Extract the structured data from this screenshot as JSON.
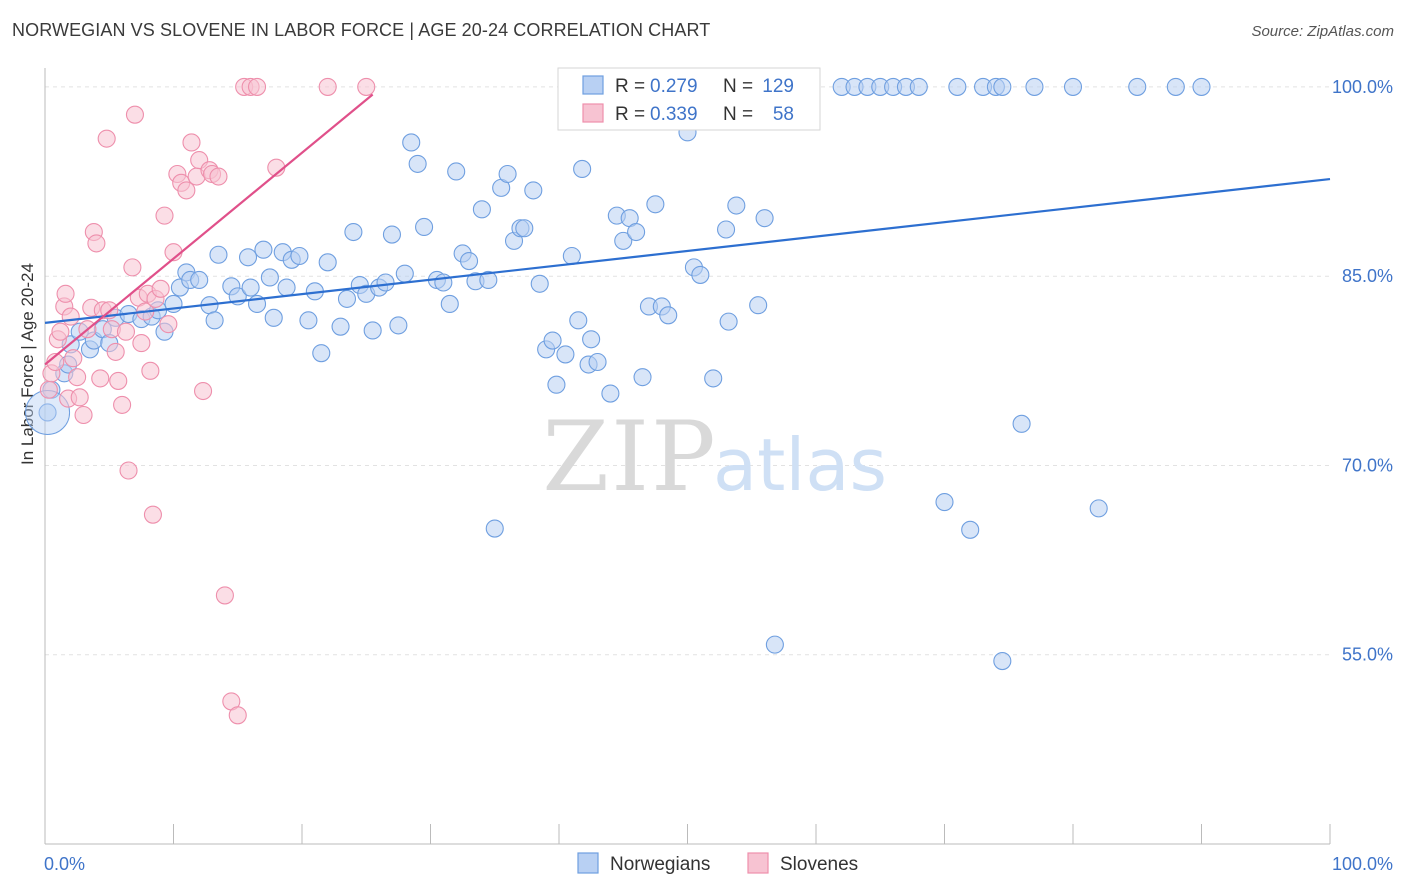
{
  "title": "NORWEGIAN VS SLOVENE IN LABOR FORCE | AGE 20-24 CORRELATION CHART",
  "source": "Source: ZipAtlas.com",
  "watermark": {
    "zip": "ZIP",
    "atlas": "atlas"
  },
  "chart_data": {
    "type": "scatter",
    "xlabel": "",
    "ylabel": "In Labor Force | Age 20-24",
    "xlim": [
      0,
      100
    ],
    "ylim": [
      40,
      101.5
    ],
    "x_tick_labels": [
      "0.0%",
      "100.0%"
    ],
    "y_ticks": [
      55,
      70,
      85,
      100
    ],
    "y_tick_labels": [
      "55.0%",
      "70.0%",
      "85.0%",
      "100.0%"
    ],
    "legend": [
      {
        "name": "Norwegians",
        "R_label": "R =",
        "R": "0.279",
        "N_label": "N =",
        "N": "129",
        "color": "#6f9fe0"
      },
      {
        "name": "Slovenes",
        "R_label": "R =",
        "R": "0.339",
        "N_label": "N =",
        "N": "58",
        "color": "#ee8fac"
      }
    ],
    "series": [
      {
        "name": "Norwegians",
        "color": "#6f9fe0",
        "fill": "#b8d0f3",
        "trend": {
          "x": [
            0,
            100
          ],
          "y": [
            81.3,
            92.7
          ],
          "color": "#2d6fd0"
        },
        "points": [
          [
            0.5,
            76
          ],
          [
            0.2,
            74.2
          ],
          [
            1.5,
            77.3
          ],
          [
            1.8,
            78
          ],
          [
            2,
            79.6
          ],
          [
            2.7,
            80.6
          ],
          [
            3.5,
            79.2
          ],
          [
            3.8,
            79.9
          ],
          [
            4.5,
            80.8
          ],
          [
            5,
            79.7
          ],
          [
            5.5,
            81.7
          ],
          [
            6.5,
            82
          ],
          [
            7.5,
            81.6
          ],
          [
            8.3,
            81.8
          ],
          [
            8.8,
            82.3
          ],
          [
            9.3,
            80.6
          ],
          [
            10,
            82.8
          ],
          [
            10.5,
            84.1
          ],
          [
            11,
            85.3
          ],
          [
            11.3,
            84.7
          ],
          [
            12,
            84.7
          ],
          [
            12.8,
            82.7
          ],
          [
            13.2,
            81.5
          ],
          [
            13.5,
            86.7
          ],
          [
            14.5,
            84.2
          ],
          [
            15,
            83.4
          ],
          [
            15.8,
            86.5
          ],
          [
            16,
            84.1
          ],
          [
            16.5,
            82.8
          ],
          [
            17,
            87.1
          ],
          [
            17.5,
            84.9
          ],
          [
            17.8,
            81.7
          ],
          [
            18.5,
            86.9
          ],
          [
            18.8,
            84.1
          ],
          [
            19.2,
            86.3
          ],
          [
            19.8,
            86.6
          ],
          [
            20.5,
            81.5
          ],
          [
            21,
            83.8
          ],
          [
            21.5,
            78.9
          ],
          [
            22,
            86.1
          ],
          [
            23,
            81
          ],
          [
            23.5,
            83.2
          ],
          [
            24,
            88.5
          ],
          [
            24.5,
            84.3
          ],
          [
            25,
            83.6
          ],
          [
            25.5,
            80.7
          ],
          [
            26,
            84.1
          ],
          [
            26.5,
            84.5
          ],
          [
            27,
            88.3
          ],
          [
            27.5,
            81.1
          ],
          [
            28,
            85.2
          ],
          [
            28.5,
            95.6
          ],
          [
            29,
            93.9
          ],
          [
            29.5,
            88.9
          ],
          [
            30.5,
            84.7
          ],
          [
            31,
            84.5
          ],
          [
            31.5,
            82.8
          ],
          [
            32,
            93.3
          ],
          [
            32.5,
            86.8
          ],
          [
            33,
            86.2
          ],
          [
            33.5,
            84.6
          ],
          [
            34,
            90.3
          ],
          [
            34.5,
            84.7
          ],
          [
            35,
            65
          ],
          [
            35.5,
            92
          ],
          [
            36,
            93.1
          ],
          [
            36.5,
            87.8
          ],
          [
            37,
            88.8
          ],
          [
            37.3,
            88.8
          ],
          [
            38,
            91.8
          ],
          [
            38.5,
            84.4
          ],
          [
            39,
            79.2
          ],
          [
            39.5,
            79.9
          ],
          [
            39.8,
            76.4
          ],
          [
            40.5,
            78.8
          ],
          [
            41,
            86.6
          ],
          [
            41.5,
            81.5
          ],
          [
            41.8,
            93.5
          ],
          [
            42.3,
            78
          ],
          [
            42.5,
            80
          ],
          [
            43,
            78.2
          ],
          [
            44,
            75.7
          ],
          [
            44.5,
            89.8
          ],
          [
            45,
            87.8
          ],
          [
            45.5,
            89.6
          ],
          [
            46,
            88.5
          ],
          [
            46.5,
            77
          ],
          [
            47,
            82.6
          ],
          [
            47.5,
            90.7
          ],
          [
            48,
            82.6
          ],
          [
            48.5,
            81.9
          ],
          [
            49,
            100
          ],
          [
            50,
            96.4
          ],
          [
            50.5,
            85.7
          ],
          [
            51,
            85.1
          ],
          [
            52,
            100
          ],
          [
            52,
            76.9
          ],
          [
            53,
            88.7
          ],
          [
            53.2,
            81.4
          ],
          [
            53.8,
            90.6
          ],
          [
            55,
            100
          ],
          [
            55.5,
            82.7
          ],
          [
            56,
            89.6
          ],
          [
            56.8,
            55.8
          ],
          [
            58,
            100
          ],
          [
            59,
            100
          ],
          [
            59.5,
            100
          ],
          [
            62,
            100
          ],
          [
            63,
            100
          ],
          [
            64,
            100
          ],
          [
            65,
            100
          ],
          [
            66,
            100
          ],
          [
            67,
            100
          ],
          [
            68,
            100
          ],
          [
            70,
            67.1
          ],
          [
            71,
            100
          ],
          [
            72,
            64.9
          ],
          [
            73,
            100
          ],
          [
            74,
            100
          ],
          [
            74.5,
            100
          ],
          [
            74.5,
            54.5
          ],
          [
            76,
            73.3
          ],
          [
            77,
            100
          ],
          [
            80,
            100
          ],
          [
            82,
            66.6
          ],
          [
            85,
            100
          ],
          [
            88,
            100
          ],
          [
            90,
            100
          ]
        ]
      },
      {
        "name": "Slovenes",
        "color": "#ee8fac",
        "fill": "#f7c3d2",
        "trend": {
          "x": [
            0,
            25.5
          ],
          "y": [
            78,
            99.4
          ],
          "color": "#e0508a"
        },
        "points": [
          [
            0.3,
            76
          ],
          [
            0.5,
            77.3
          ],
          [
            0.8,
            78.2
          ],
          [
            1,
            80
          ],
          [
            1.2,
            80.6
          ],
          [
            1.5,
            82.6
          ],
          [
            1.6,
            83.6
          ],
          [
            1.8,
            75.3
          ],
          [
            2,
            81.8
          ],
          [
            2.2,
            78.5
          ],
          [
            2.5,
            77
          ],
          [
            2.7,
            75.4
          ],
          [
            3,
            74
          ],
          [
            3.3,
            80.8
          ],
          [
            3.6,
            82.5
          ],
          [
            3.8,
            88.5
          ],
          [
            4,
            87.6
          ],
          [
            4.3,
            76.9
          ],
          [
            4.5,
            82.3
          ],
          [
            4.8,
            95.9
          ],
          [
            5,
            82.3
          ],
          [
            5.2,
            80.8
          ],
          [
            5.5,
            79
          ],
          [
            5.7,
            76.7
          ],
          [
            6,
            74.8
          ],
          [
            6.3,
            80.6
          ],
          [
            6.5,
            69.6
          ],
          [
            6.8,
            85.7
          ],
          [
            7,
            97.8
          ],
          [
            7.3,
            83.3
          ],
          [
            7.5,
            79.7
          ],
          [
            7.8,
            82.2
          ],
          [
            8,
            83.6
          ],
          [
            8.2,
            77.5
          ],
          [
            8.4,
            66.1
          ],
          [
            8.6,
            83.2
          ],
          [
            9,
            84
          ],
          [
            9.3,
            89.8
          ],
          [
            9.6,
            81.2
          ],
          [
            10,
            86.9
          ],
          [
            10.3,
            93.1
          ],
          [
            10.6,
            92.4
          ],
          [
            11,
            91.8
          ],
          [
            11.4,
            95.6
          ],
          [
            11.8,
            92.9
          ],
          [
            12,
            94.2
          ],
          [
            12.3,
            75.9
          ],
          [
            12.8,
            93.4
          ],
          [
            13,
            93.1
          ],
          [
            13.5,
            92.9
          ],
          [
            14,
            59.7
          ],
          [
            14.5,
            51.3
          ],
          [
            15,
            50.2
          ],
          [
            15.5,
            100
          ],
          [
            16,
            100
          ],
          [
            16.5,
            100
          ],
          [
            18,
            93.6
          ],
          [
            22,
            100
          ],
          [
            25,
            100
          ]
        ]
      }
    ]
  }
}
